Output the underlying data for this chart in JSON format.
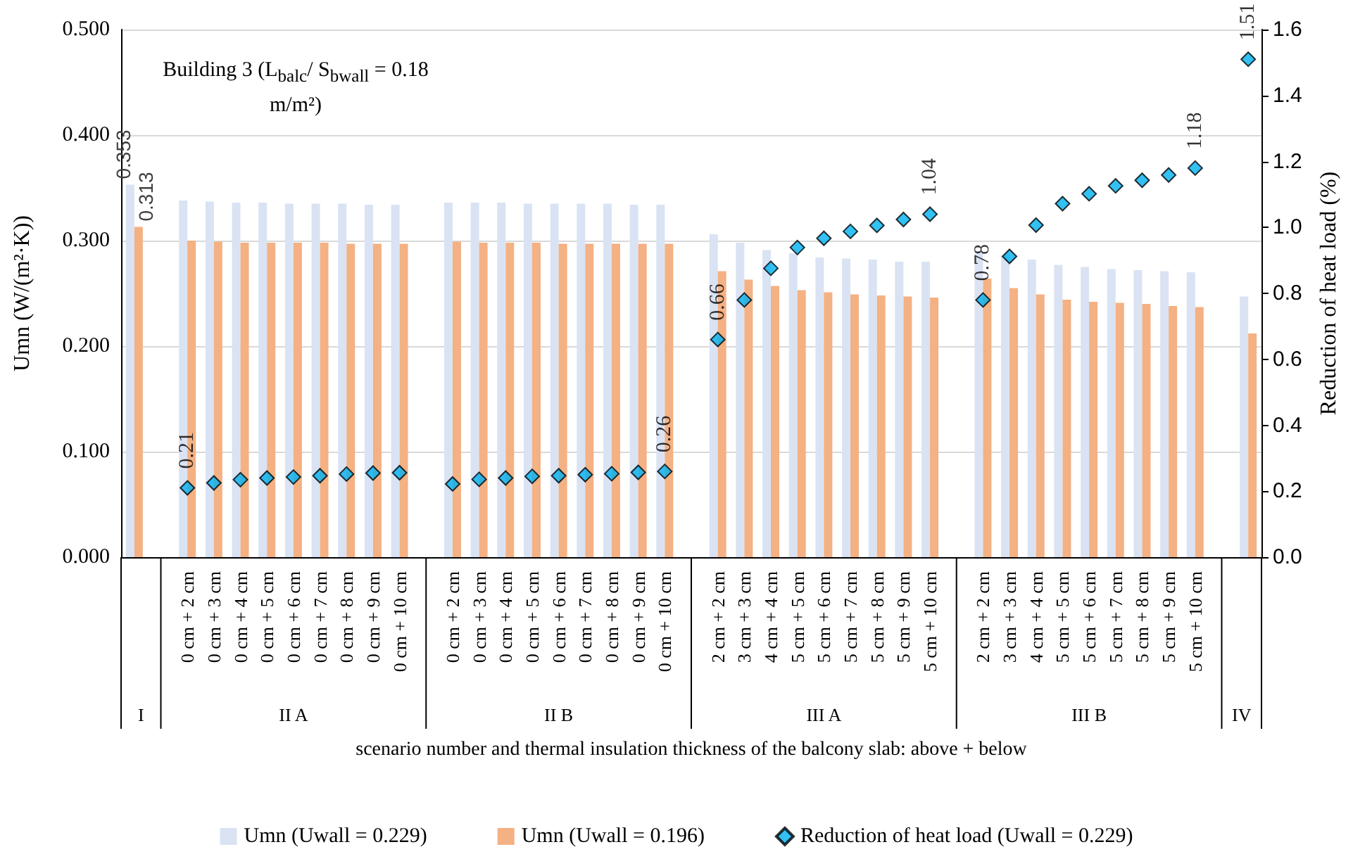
{
  "chart_data": {
    "type": "bar",
    "ylabel": "Umn (W/(m²·K))",
    "y2label": "Reduction of heat load (%)",
    "xlabel": "scenario number and thermal insulation thickness of the balcony slab: above + below",
    "annotations": [
      "Building 3 (L$_{balc}$/ S$_{bwall}$ = 0.18 m/m²)",
      "I",
      "II A",
      "II B",
      "III A",
      "III B",
      "IV"
    ],
    "categories": [
      null,
      null,
      "0 cm + 2 cm",
      "0 cm + 3 cm",
      "0 cm + 4 cm",
      "0 cm + 5 cm",
      "0 cm + 6 cm",
      "0 cm + 7 cm",
      "0 cm + 8 cm",
      "0 cm + 9 cm",
      "0 cm + 10 cm",
      null,
      "0 cm + 2 cm",
      "0 cm + 3 cm",
      "0 cm + 4 cm",
      "0 cm + 5 cm",
      "0 cm + 6 cm",
      "0 cm + 7 cm",
      "0 cm + 8 cm",
      "0 cm + 9 cm",
      "0 cm + 10 cm",
      null,
      "2 cm + 2 cm",
      "3 cm + 3 cm",
      "4 cm + 4 cm",
      "5 cm + 5 cm",
      "5 cm + 6 cm",
      "5 cm + 7 cm",
      "5 cm + 8 cm",
      "5 cm + 9 cm",
      "5 cm + 10 cm",
      null,
      "2 cm + 2 cm",
      "3 cm + 3 cm",
      "4 cm + 4 cm",
      "5 cm + 5 cm",
      "5 cm + 6 cm",
      "5 cm + 7 cm",
      "5 cm + 8 cm",
      "5 cm + 9 cm",
      "5 cm + 10 cm",
      null,
      null
    ],
    "series": [
      {
        "name": "Umn (Uwall = 0.229)",
        "color": "#dae3f3",
        "values": [
          0.353,
          null,
          0.338,
          0.337,
          0.336,
          0.336,
          0.335,
          0.335,
          0.335,
          0.334,
          0.334,
          null,
          0.336,
          0.336,
          0.336,
          0.335,
          0.335,
          0.335,
          0.335,
          0.334,
          0.334,
          null,
          0.306,
          0.298,
          0.291,
          0.288,
          0.284,
          0.283,
          0.282,
          0.28,
          0.28,
          null,
          0.29,
          0.286,
          0.282,
          0.277,
          0.275,
          0.273,
          0.272,
          0.271,
          0.27,
          null,
          0.247
        ],
        "value_labels": [
          "0.353",
          null,
          null,
          null,
          null,
          null,
          null,
          null,
          null,
          null,
          null,
          null,
          null,
          null,
          null,
          null,
          null,
          null,
          null,
          null,
          null,
          null,
          null,
          null,
          null,
          null,
          null,
          null,
          null,
          null,
          null,
          null,
          null,
          null,
          null,
          null,
          null,
          null,
          null,
          null,
          null,
          null,
          null
        ]
      },
      {
        "name": "Umn (Uwall = 0.196)",
        "color": "#f4b183",
        "values": [
          0.313,
          null,
          0.3,
          0.299,
          0.298,
          0.298,
          0.298,
          0.298,
          0.297,
          0.297,
          0.297,
          null,
          0.299,
          0.298,
          0.298,
          0.298,
          0.297,
          0.297,
          0.297,
          0.297,
          0.297,
          null,
          0.271,
          0.263,
          0.257,
          0.253,
          0.251,
          0.249,
          0.248,
          0.247,
          0.246,
          null,
          0.264,
          0.255,
          0.249,
          0.244,
          0.242,
          0.241,
          0.24,
          0.238,
          0.237,
          null,
          0.212
        ],
        "value_labels": [
          "0.313",
          null,
          null,
          null,
          null,
          null,
          null,
          null,
          null,
          null,
          null,
          null,
          null,
          null,
          null,
          null,
          null,
          null,
          null,
          null,
          null,
          null,
          null,
          null,
          null,
          null,
          null,
          null,
          null,
          null,
          null,
          null,
          null,
          null,
          null,
          null,
          null,
          null,
          null,
          null,
          null,
          null,
          null
        ]
      },
      {
        "name": "Reduction of heat load (Uwall = 0.229)",
        "type": "scatter",
        "axis": "y2",
        "marker": "diamond",
        "color": "#00b0f0",
        "values": [
          null,
          null,
          0.21,
          0.225,
          0.235,
          0.24,
          0.243,
          0.247,
          0.252,
          0.255,
          0.256,
          null,
          0.222,
          0.236,
          0.24,
          0.245,
          0.247,
          0.25,
          0.253,
          0.257,
          0.26,
          null,
          0.66,
          0.78,
          0.876,
          0.939,
          0.967,
          0.988,
          1.006,
          1.024,
          1.04,
          null,
          0.78,
          0.912,
          1.007,
          1.072,
          1.102,
          1.126,
          1.143,
          1.159,
          1.18,
          null,
          1.51
        ],
        "value_labels": [
          null,
          null,
          "0.21",
          null,
          null,
          null,
          null,
          null,
          null,
          null,
          null,
          null,
          null,
          null,
          null,
          null,
          null,
          null,
          null,
          null,
          "0.26",
          null,
          "0.66",
          null,
          null,
          null,
          null,
          null,
          null,
          null,
          "1.04",
          null,
          "0.78",
          null,
          null,
          null,
          null,
          null,
          null,
          null,
          "1.18",
          null,
          "1.51"
        ]
      }
    ],
    "ylim": [
      0,
      0.5
    ],
    "yticks": [
      {
        "value": 0,
        "label": "0.000"
      },
      {
        "value": 0.1,
        "label": "0.100"
      },
      {
        "value": 0.2,
        "label": "0.200"
      },
      {
        "value": 0.3,
        "label": "0.300"
      },
      {
        "value": 0.4,
        "label": "0.400"
      },
      {
        "value": 0.5,
        "label": "0.500"
      }
    ],
    "y2lim": [
      0,
      1.6
    ],
    "y2ticks": [
      {
        "value": 0,
        "label": "0.0"
      },
      {
        "value": 0.2,
        "label": "0.2"
      },
      {
        "value": 0.4,
        "label": "0.4"
      },
      {
        "value": 0.6,
        "label": "0.6"
      },
      {
        "value": 0.8,
        "label": "0.8"
      },
      {
        "value": 1,
        "label": "1.0"
      },
      {
        "value": 1.2,
        "label": "1.2"
      },
      {
        "value": 1.4,
        "label": "1.4"
      },
      {
        "value": 1.6,
        "label": "1.6"
      }
    ],
    "grid": "y",
    "legend": "bottom"
  }
}
